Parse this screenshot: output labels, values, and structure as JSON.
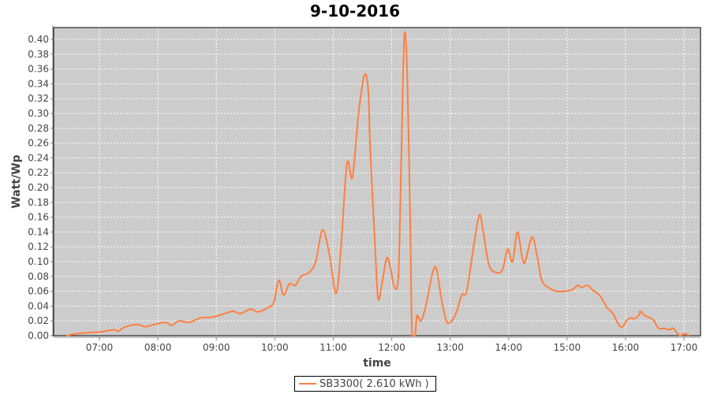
{
  "chart_data": {
    "type": "line",
    "title": "9-10-2016",
    "xlabel": "time",
    "ylabel": "Watt/Wp",
    "xlim": [
      "06:13",
      "17:17"
    ],
    "ylim": [
      0,
      0.416
    ],
    "xticks": [
      "07:00",
      "08:00",
      "09:00",
      "10:00",
      "11:00",
      "12:00",
      "13:00",
      "14:00",
      "15:00",
      "16:00",
      "17:00"
    ],
    "yticks": [
      "0.00",
      "0.02",
      "0.04",
      "0.06",
      "0.08",
      "0.10",
      "0.12",
      "0.14",
      "0.16",
      "0.18",
      "0.20",
      "0.22",
      "0.24",
      "0.26",
      "0.28",
      "0.30",
      "0.32",
      "0.34",
      "0.36",
      "0.38",
      "0.40"
    ],
    "grid": true,
    "legend_position": "bottom",
    "colors": {
      "series": "#ff7f3f",
      "plot_background": "#cccccc",
      "grid": "#ffffff"
    },
    "series": [
      {
        "name": "SB3300( 2.610 kWh )",
        "x": [
          "06:26",
          "06:38",
          "07:00",
          "07:15",
          "07:19",
          "07:27",
          "07:39",
          "07:47",
          "07:56",
          "08:08",
          "08:14",
          "08:22",
          "08:32",
          "08:44",
          "08:56",
          "09:09",
          "09:17",
          "09:25",
          "09:35",
          "09:43",
          "09:53",
          "09:59",
          "10:04",
          "10:09",
          "10:15",
          "10:21",
          "10:27",
          "10:35",
          "10:42",
          "10:49",
          "10:56",
          "11:03",
          "11:08",
          "11:14",
          "11:19",
          "11:22",
          "11:26",
          "11:32",
          "11:36",
          "11:38",
          "11:43",
          "11:46",
          "11:50",
          "11:55",
          "11:59",
          "12:03",
          "12:07",
          "12:10",
          "12:13",
          "12:16",
          "12:19",
          "12:21",
          "12:24",
          "12:26",
          "12:30",
          "12:35",
          "12:42",
          "12:46",
          "12:51",
          "12:56",
          "13:00",
          "13:06",
          "13:12",
          "13:17",
          "13:24",
          "13:30",
          "13:34",
          "13:40",
          "13:48",
          "13:54",
          "13:59",
          "14:04",
          "14:09",
          "14:14",
          "14:17",
          "14:24",
          "14:29",
          "14:34",
          "14:41",
          "14:49",
          "14:57",
          "15:05",
          "15:11",
          "15:15",
          "15:21",
          "15:26",
          "15:33",
          "15:38",
          "15:41",
          "15:47",
          "15:53",
          "15:57",
          "16:01",
          "16:05",
          "16:09",
          "16:14",
          "16:15",
          "16:20",
          "16:28",
          "16:34",
          "16:40",
          "16:45",
          "16:49",
          "16:52",
          "16:56",
          "17:01",
          "17:05"
        ],
        "values": [
          0.0,
          0.003,
          0.005,
          0.008,
          0.006,
          0.012,
          0.015,
          0.012,
          0.015,
          0.018,
          0.014,
          0.02,
          0.018,
          0.024,
          0.025,
          0.03,
          0.033,
          0.03,
          0.036,
          0.032,
          0.038,
          0.045,
          0.075,
          0.055,
          0.07,
          0.068,
          0.08,
          0.085,
          0.1,
          0.143,
          0.11,
          0.057,
          0.12,
          0.232,
          0.212,
          0.24,
          0.3,
          0.352,
          0.33,
          0.25,
          0.12,
          0.05,
          0.07,
          0.105,
          0.09,
          0.065,
          0.085,
          0.25,
          0.405,
          0.35,
          0.15,
          0.0,
          0.0,
          0.027,
          0.02,
          0.04,
          0.085,
          0.09,
          0.05,
          0.02,
          0.018,
          0.03,
          0.055,
          0.06,
          0.12,
          0.163,
          0.14,
          0.095,
          0.085,
          0.09,
          0.117,
          0.1,
          0.14,
          0.105,
          0.1,
          0.133,
          0.11,
          0.075,
          0.065,
          0.06,
          0.06,
          0.062,
          0.068,
          0.065,
          0.068,
          0.062,
          0.055,
          0.045,
          0.038,
          0.03,
          0.015,
          0.012,
          0.02,
          0.024,
          0.023,
          0.028,
          0.033,
          0.027,
          0.022,
          0.01,
          0.01,
          0.008,
          0.01,
          0.005,
          0.0,
          0.003,
          0.0
        ]
      }
    ]
  }
}
